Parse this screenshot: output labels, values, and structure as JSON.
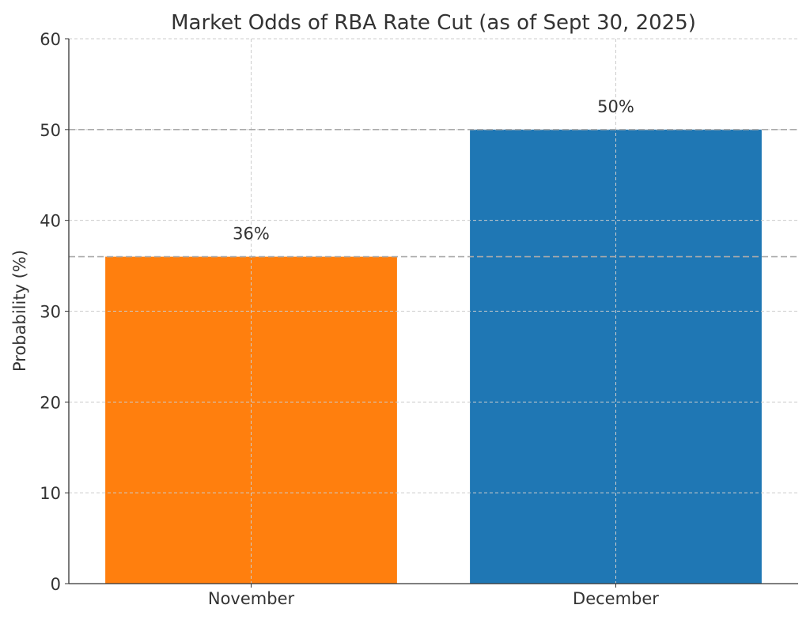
{
  "chart_data": {
    "type": "bar",
    "title": "Market Odds of RBA Rate Cut (as of Sept 30, 2025)",
    "xlabel": "",
    "ylabel": "Probability (%)",
    "categories": [
      "November",
      "December"
    ],
    "values": [
      36,
      50
    ],
    "data_labels": [
      "36%",
      "50%"
    ],
    "colors": [
      "#ff7f0e",
      "#1f77b4"
    ],
    "ylim": [
      0,
      60
    ],
    "yticks": [
      0,
      10,
      20,
      30,
      40,
      50,
      60
    ],
    "grid": true,
    "reference_lines": [
      36,
      50
    ],
    "reference_line_color": "#aaaaaa"
  }
}
